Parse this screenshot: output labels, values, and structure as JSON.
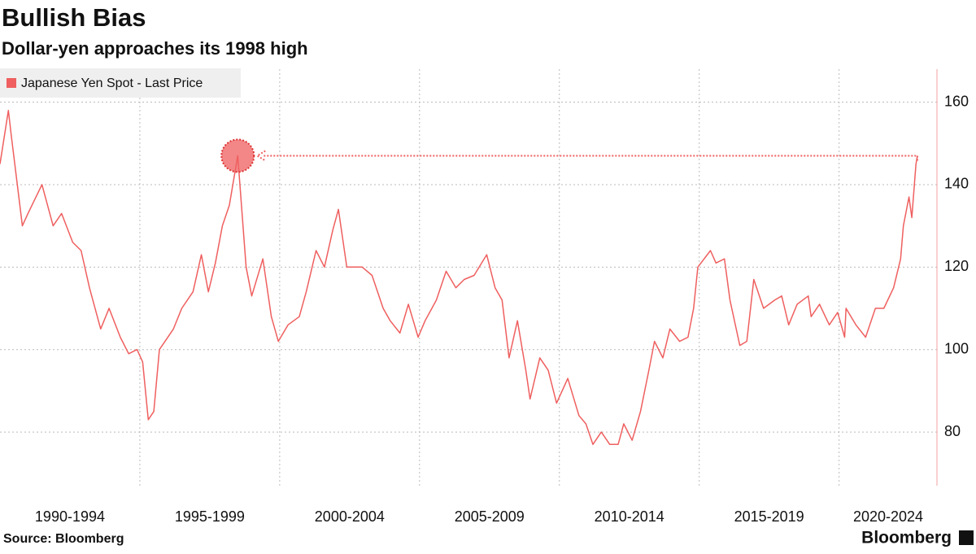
{
  "chart_data": {
    "type": "line",
    "title": "Bullish Bias",
    "subtitle": "Dollar-yen approaches its 1998 high",
    "source": "Source: Bloomberg",
    "brand": "Bloomberg",
    "legend": "top-left",
    "grid": true,
    "x": [
      1990.0,
      1990.3,
      1990.4,
      1990.8,
      1991.0,
      1991.5,
      1991.9,
      1992.2,
      1992.6,
      1992.9,
      1993.2,
      1993.6,
      1993.9,
      1994.3,
      1994.6,
      1994.9,
      1995.1,
      1995.3,
      1995.5,
      1995.7,
      1995.9,
      1996.2,
      1996.5,
      1996.9,
      1997.2,
      1997.45,
      1997.7,
      1997.95,
      1998.2,
      1998.5,
      1998.8,
      1999.0,
      1999.4,
      1999.7,
      1999.95,
      2000.3,
      2000.7,
      2000.95,
      2001.3,
      2001.6,
      2001.9,
      2002.1,
      2002.4,
      2002.7,
      2002.95,
      2003.3,
      2003.7,
      2003.95,
      2004.3,
      2004.6,
      2004.95,
      2005.2,
      2005.6,
      2005.95,
      2006.3,
      2006.6,
      2006.95,
      2007.4,
      2007.7,
      2007.95,
      2008.2,
      2008.5,
      2008.8,
      2008.95,
      2009.3,
      2009.6,
      2009.9,
      2010.3,
      2010.7,
      2010.95,
      2011.2,
      2011.5,
      2011.8,
      2012.1,
      2012.3,
      2012.6,
      2012.9,
      2013.2,
      2013.4,
      2013.7,
      2013.95,
      2014.3,
      2014.6,
      2014.8,
      2014.95,
      2015.4,
      2015.6,
      2015.9,
      2016.1,
      2016.45,
      2016.7,
      2016.95,
      2017.3,
      2017.7,
      2017.95,
      2018.2,
      2018.5,
      2018.9,
      2019.0,
      2019.3,
      2019.65,
      2019.95,
      2020.2,
      2020.25,
      2020.6,
      2020.95,
      2021.3,
      2021.6,
      2021.95,
      2022.2,
      2022.3,
      2022.5,
      2022.6,
      2022.75,
      2022.8
    ],
    "series": [
      {
        "name": "Japanese Yen Spot - Last Price",
        "color": "#ef5f5f",
        "values": [
          145,
          158,
          152,
          130,
          133,
          140,
          130,
          133,
          126,
          124,
          115,
          105,
          110,
          103,
          99,
          100,
          97,
          83,
          85,
          100,
          102,
          105,
          110,
          114,
          123,
          114,
          121,
          130,
          135,
          147,
          120,
          113,
          122,
          108,
          102,
          106,
          108,
          114,
          124,
          120,
          129,
          134,
          120,
          120,
          120,
          118,
          110,
          107,
          104,
          111,
          103,
          107,
          112,
          119,
          115,
          117,
          118,
          123,
          115,
          112,
          98,
          107,
          95,
          88,
          98,
          95,
          87,
          93,
          84,
          82,
          77,
          80,
          77,
          77,
          82,
          78,
          85,
          95,
          102,
          98,
          105,
          102,
          103,
          110,
          120,
          124,
          121,
          122,
          112,
          101,
          102,
          117,
          110,
          112,
          113,
          106,
          111,
          113,
          108,
          111,
          106,
          109,
          103,
          110,
          106,
          103,
          110,
          110,
          115,
          122,
          130,
          137,
          132,
          145,
          147
        ]
      }
    ],
    "highlight": {
      "x": 1998.5,
      "y": 147
    },
    "xlim": [
      1990,
      2023.5
    ],
    "xticks": [
      {
        "value": 1990,
        "label": "1990-1994"
      },
      {
        "value": 1995,
        "label": "1995-1999"
      },
      {
        "value": 2000,
        "label": "2000-2004"
      },
      {
        "value": 2005,
        "label": "2005-2009"
      },
      {
        "value": 2010,
        "label": "2010-2014"
      },
      {
        "value": 2015,
        "label": "2015-2019"
      },
      {
        "value": 2020,
        "label": "2020-2024"
      }
    ],
    "ylim": [
      67,
      168
    ],
    "yticks": [
      80,
      100,
      120,
      140,
      160
    ]
  }
}
